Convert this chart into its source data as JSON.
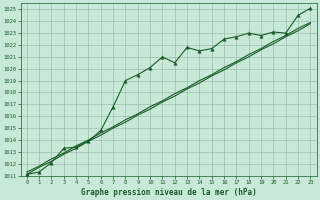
{
  "xlabel": "Graphe pression niveau de la mer (hPa)",
  "bg_color": "#c8e8d8",
  "grid_color": "#9bbfad",
  "line_color": "#1a5c28",
  "ylim": [
    1011,
    1025.5
  ],
  "xlim": [
    -0.5,
    23.5
  ],
  "ytick_min": 1011,
  "ytick_max": 1025,
  "xticks": [
    0,
    1,
    2,
    3,
    4,
    5,
    6,
    7,
    8,
    9,
    10,
    11,
    12,
    13,
    14,
    15,
    16,
    17,
    18,
    19,
    20,
    21,
    22,
    23
  ],
  "main_series": [
    1011.1,
    1011.3,
    1012.1,
    1013.3,
    1013.4,
    1013.9,
    1014.8,
    1016.8,
    1019.0,
    1019.5,
    1020.1,
    1021.0,
    1020.5,
    1021.8,
    1021.5,
    1021.7,
    1022.5,
    1022.7,
    1023.0,
    1022.8,
    1023.1,
    1023.0,
    1024.5,
    1025.1
  ],
  "lin1": [
    1011.1,
    1011.7,
    1012.2,
    1012.8,
    1013.3,
    1013.9,
    1014.4,
    1015.0,
    1015.5,
    1016.1,
    1016.6,
    1017.2,
    1017.7,
    1018.3,
    1018.8,
    1019.4,
    1019.9,
    1020.5,
    1021.0,
    1021.6,
    1022.1,
    1022.7,
    1023.2,
    1023.8
  ],
  "lin2": [
    1011.3,
    1011.8,
    1012.4,
    1012.9,
    1013.5,
    1014.0,
    1014.6,
    1015.1,
    1015.7,
    1016.2,
    1016.8,
    1017.3,
    1017.9,
    1018.4,
    1019.0,
    1019.5,
    1020.1,
    1020.6,
    1021.2,
    1021.7,
    1022.3,
    1022.8,
    1023.4,
    1023.9
  ]
}
